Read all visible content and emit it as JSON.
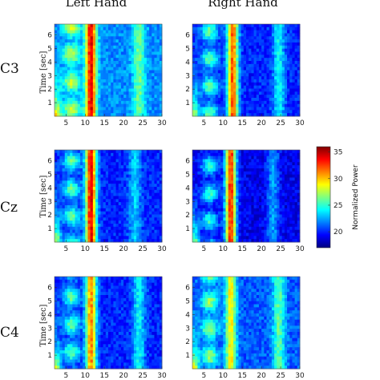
{
  "chart_data": {
    "type": "heatmap",
    "column_titles": [
      "Left Hand",
      "Right Hand"
    ],
    "row_labels": [
      "C3",
      "Cz",
      "C4"
    ],
    "ylabel": "Time [sec]",
    "x_ticks": [
      5,
      10,
      15,
      20,
      25,
      30
    ],
    "y_ticks": [
      1,
      2,
      3,
      4,
      5,
      6
    ],
    "xlim": [
      2,
      30
    ],
    "ylim": [
      0,
      6.8
    ],
    "colorbar": {
      "label": "Normalized Power",
      "ticks": [
        20,
        25,
        30,
        35
      ],
      "range": [
        17,
        36
      ],
      "colormap": "jet"
    },
    "panels": [
      {
        "row": "C3",
        "column": "Left Hand",
        "peak_x": 11.5,
        "mu_band_power": 34,
        "secondary_x": 24,
        "secondary_power": 27,
        "background_power": 22
      },
      {
        "row": "C3",
        "column": "Right Hand",
        "peak_x": 12.5,
        "mu_band_power": 32,
        "secondary_x": 24.5,
        "secondary_power": 25,
        "background_power": 20
      },
      {
        "row": "Cz",
        "column": "Left Hand",
        "peak_x": 11.5,
        "mu_band_power": 34,
        "secondary_x": 23,
        "secondary_power": 24,
        "background_power": 20
      },
      {
        "row": "Cz",
        "column": "Right Hand",
        "peak_x": 12.0,
        "mu_band_power": 33,
        "secondary_x": 23,
        "secondary_power": 23,
        "background_power": 19
      },
      {
        "row": "C4",
        "column": "Left Hand",
        "peak_x": 11.5,
        "mu_band_power": 31,
        "secondary_x": 24,
        "secondary_power": 25,
        "background_power": 20
      },
      {
        "row": "C4",
        "column": "Right Hand",
        "peak_x": 12.0,
        "mu_band_power": 29,
        "secondary_x": 24.5,
        "secondary_power": 27,
        "background_power": 21
      }
    ]
  }
}
